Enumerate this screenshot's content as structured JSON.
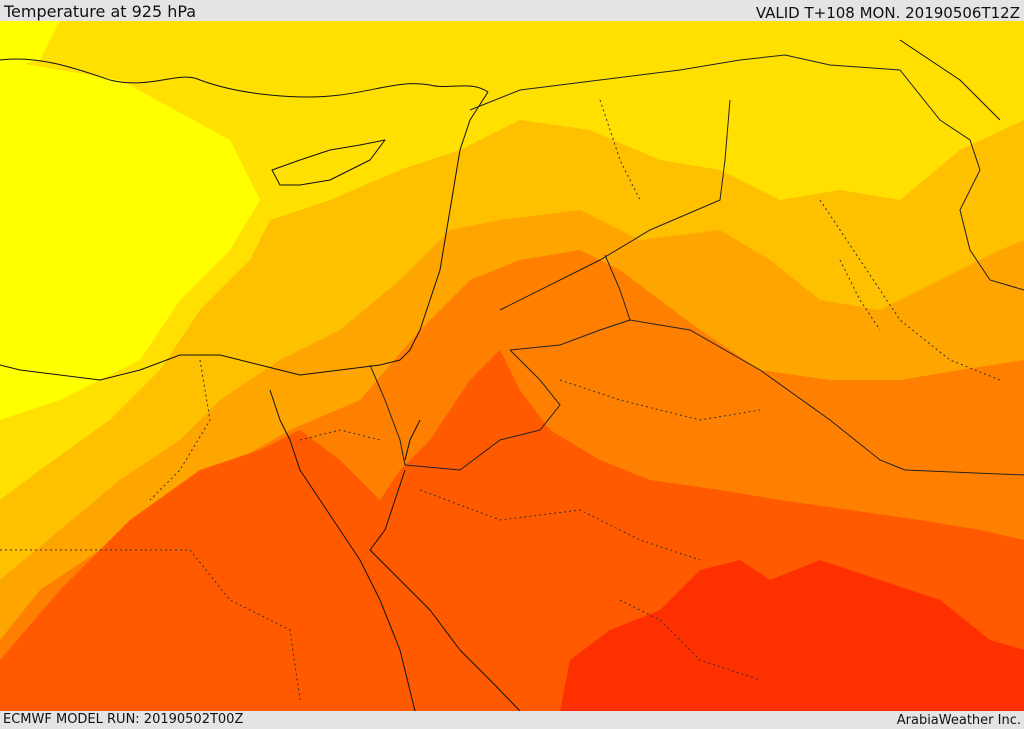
{
  "header": {
    "title": "Temperature at 925 hPa",
    "valid_time": "VALID T+108 MON. 20190506T12Z"
  },
  "footer": {
    "model_run": "ECMWF MODEL RUN: 20190502T00Z",
    "credit": "ArabiaWeather Inc."
  },
  "colors": {
    "band_1": "#ffff00",
    "band_2": "#ffe000",
    "band_3": "#ffc000",
    "band_4": "#ffa500",
    "band_5": "#ff8000",
    "band_6": "#ff5a00",
    "band_7": "#ff3000",
    "coastline": "#111111",
    "border": "#222222"
  }
}
